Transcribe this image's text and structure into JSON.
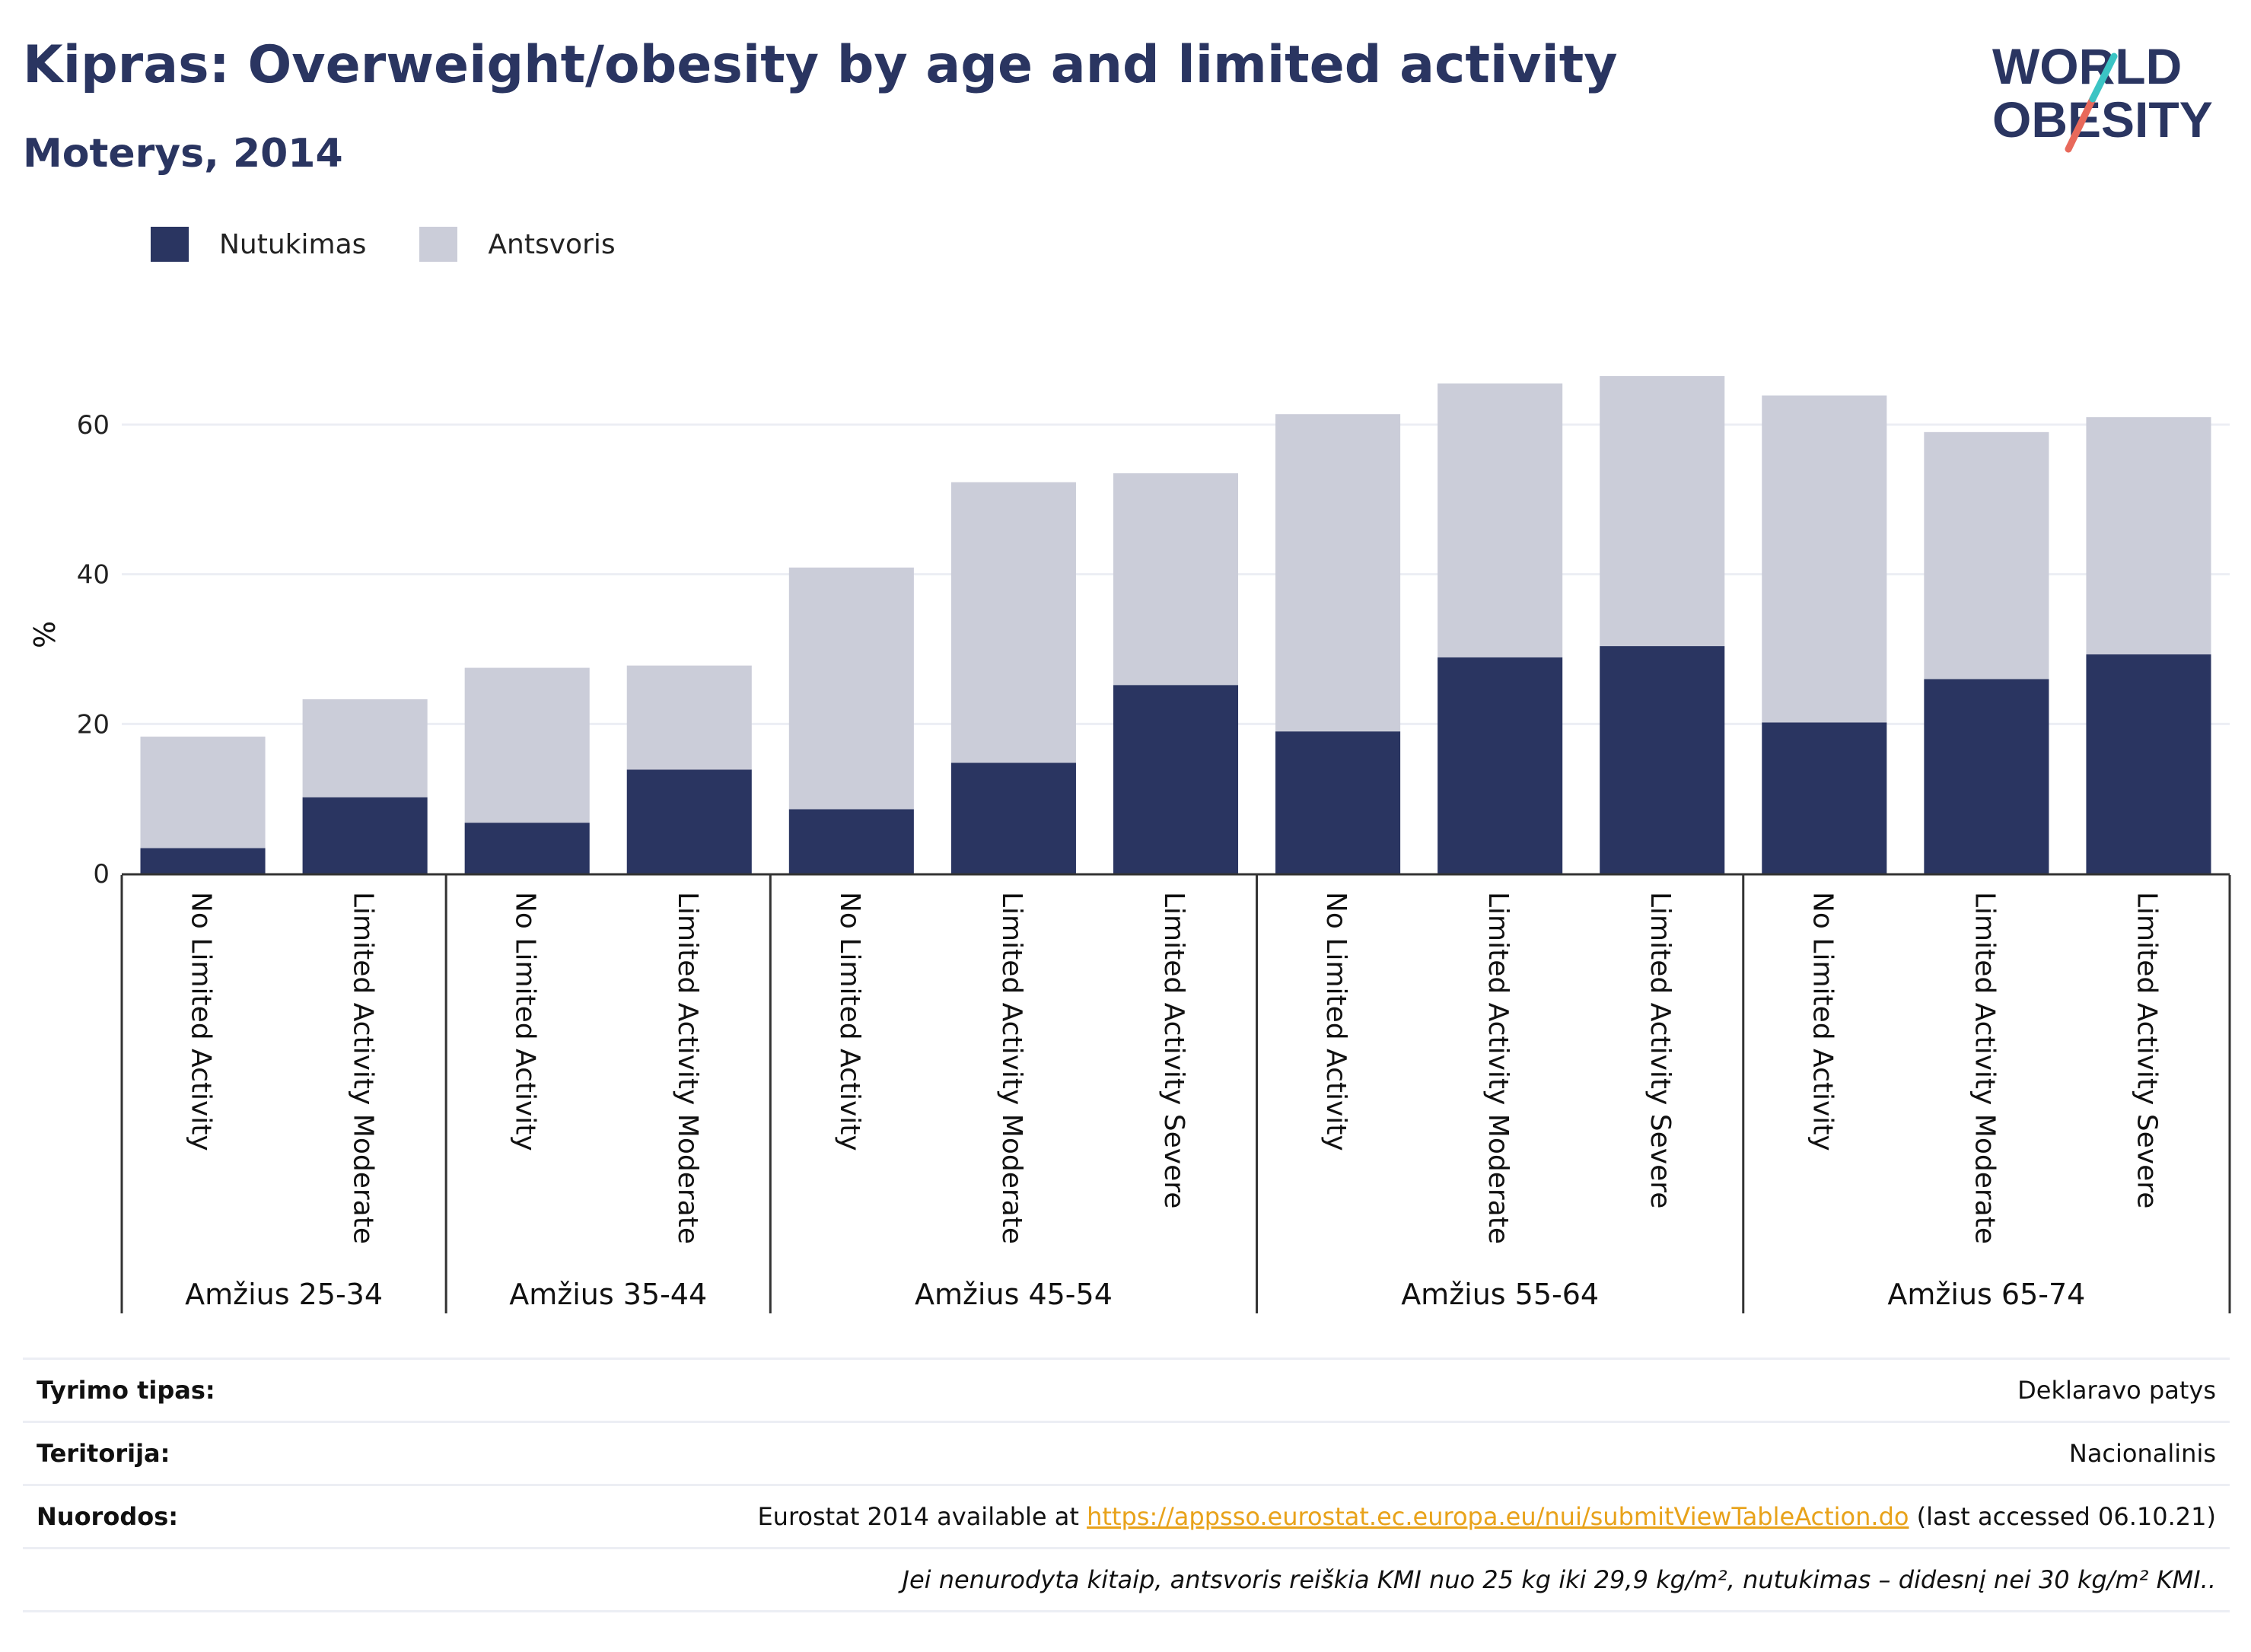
{
  "header": {
    "title": "Kipras: Overweight/obesity by age and limited activity",
    "subtitle": "Moterys, 2014",
    "logo_line1": "WORLD",
    "logo_line2": "OBESITY"
  },
  "legend": {
    "items": [
      {
        "label": "Nutukimas",
        "color": "#2a3561"
      },
      {
        "label": "Antsvoris",
        "color": "#cbcdd9"
      }
    ]
  },
  "chart_data": {
    "type": "bar",
    "stacked": true,
    "ylabel": "%",
    "ylim": [
      0,
      72
    ],
    "yticks": [
      0,
      20,
      40,
      60
    ],
    "grid": true,
    "legend_position": "top-left",
    "groups": [
      {
        "label": "Amžius 25-34",
        "categories": [
          "No Limited Activity",
          "Limited Activity Moderate"
        ]
      },
      {
        "label": "Amžius 35-44",
        "categories": [
          "No Limited Activity",
          "Limited Activity Moderate"
        ]
      },
      {
        "label": "Amžius 45-54",
        "categories": [
          "No Limited Activity",
          "Limited Activity Moderate",
          "Limited Activity Severe"
        ]
      },
      {
        "label": "Amžius 55-64",
        "categories": [
          "No Limited Activity",
          "Limited Activity Moderate",
          "Limited Activity Severe"
        ]
      },
      {
        "label": "Amžius 65-74",
        "categories": [
          "No Limited Activity",
          "Limited Activity Moderate",
          "Limited Activity Severe"
        ]
      }
    ],
    "series": [
      {
        "name": "Nutukimas",
        "color": "#2a3561",
        "values": [
          3.4,
          10.2,
          6.8,
          13.9,
          8.6,
          14.8,
          25.2,
          19.0,
          28.9,
          30.4,
          20.2,
          26.0,
          29.3
        ]
      },
      {
        "name": "Antsvoris",
        "color": "#cbcdd9",
        "values": [
          14.9,
          13.1,
          20.7,
          13.9,
          32.3,
          37.5,
          28.3,
          42.4,
          36.6,
          36.1,
          43.7,
          33.0,
          31.7
        ]
      }
    ]
  },
  "info_table": {
    "survey_label": "Tyrimo tipas:",
    "survey_value": "Deklaravo patys",
    "territory_label": "Teritorija:",
    "territory_value": "Nacionalinis",
    "refs_label": "Nuorodos:",
    "refs_prefix": "Eurostat 2014 available at ",
    "refs_link": "https://appsso.eurostat.ec.europa.eu/nui/submitViewTableAction.do",
    "refs_suffix": " (last accessed 06.10.21)",
    "note": "Jei nenurodyta kitaip, antsvoris reiškia KMI nuo 25 kg iki 29,9 kg/m², nutukimas – didesnį nei 30 kg/m² KMI.."
  }
}
